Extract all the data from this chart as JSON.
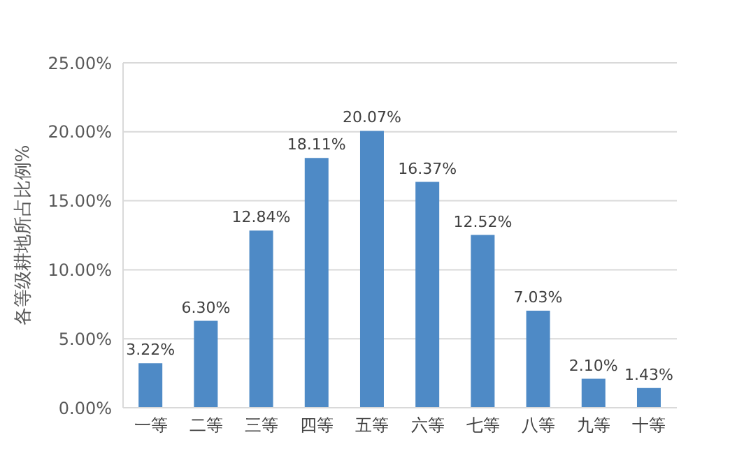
{
  "chart_data": {
    "type": "bar",
    "ylabel": "各等级耕地所占比例%",
    "categories": [
      "一等",
      "二等",
      "三等",
      "四等",
      "五等",
      "六等",
      "七等",
      "八等",
      "九等",
      "十等"
    ],
    "values": [
      3.22,
      6.3,
      12.84,
      18.11,
      20.07,
      16.37,
      12.52,
      7.03,
      2.1,
      1.43
    ],
    "value_labels": [
      "3.22%",
      "6.30%",
      "12.84%",
      "18.11%",
      "20.07%",
      "16.37%",
      "12.52%",
      "7.03%",
      "2.10%",
      "1.43%"
    ],
    "color": "#4e8ac6",
    "ylim": [
      0,
      25
    ],
    "yticks": [
      {
        "value": 0,
        "label": "0.00%"
      },
      {
        "value": 5,
        "label": "5.00%"
      },
      {
        "value": 10,
        "label": "10.00%"
      },
      {
        "value": 15,
        "label": "15.00%"
      },
      {
        "value": 20,
        "label": "20.00%"
      },
      {
        "value": 25,
        "label": "25.00%"
      }
    ],
    "grid": "y"
  }
}
